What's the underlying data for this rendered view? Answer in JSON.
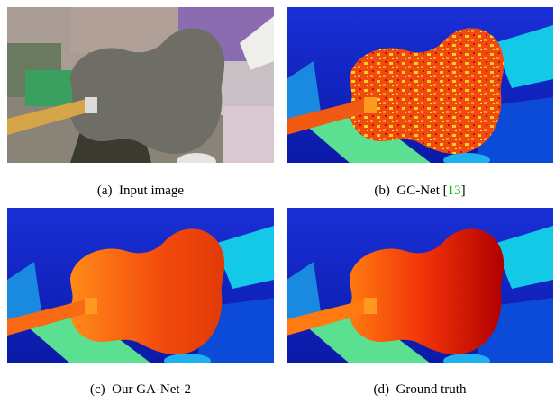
{
  "figure": {
    "panels": [
      {
        "label": "(a)",
        "text": "Input image"
      },
      {
        "label": "(b)",
        "text": "GC-Net",
        "ref": "13"
      },
      {
        "label": "(c)",
        "text": "Our GA-Net-2"
      },
      {
        "label": "(d)",
        "text": "Ground truth"
      }
    ]
  }
}
